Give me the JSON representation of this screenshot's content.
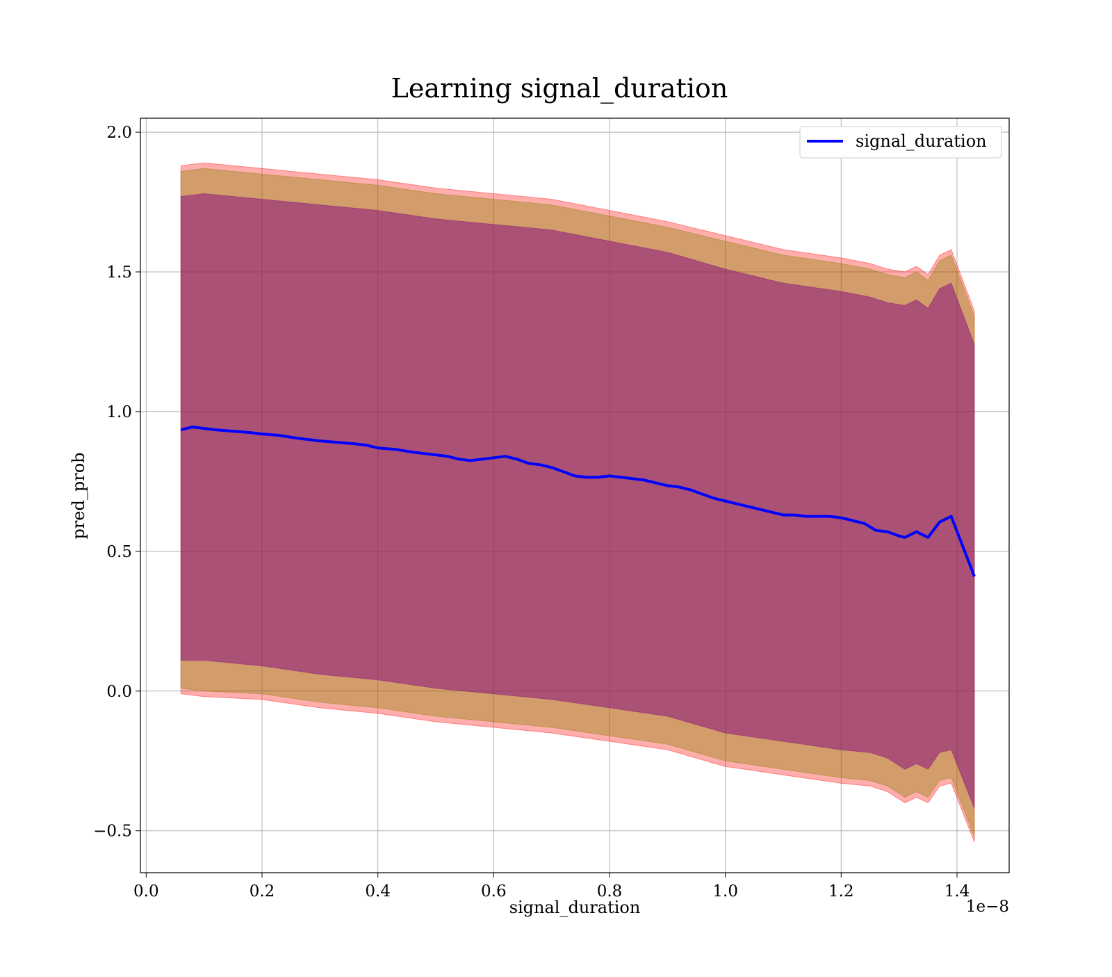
{
  "chart_data": {
    "type": "line",
    "title": "Learning signal_duration",
    "xlabel": "signal_duration",
    "ylabel": "pred_prob",
    "x_offset_label": "1e−8",
    "xlim": [
      -0.01,
      1.49
    ],
    "ylim": [
      -0.65,
      2.05
    ],
    "x_ticks": [
      0.0,
      0.2,
      0.4,
      0.6,
      0.8,
      1.0,
      1.2,
      1.4
    ],
    "x_tick_labels": [
      "0.0",
      "0.2",
      "0.4",
      "0.6",
      "0.8",
      "1.0",
      "1.2",
      "1.4"
    ],
    "y_ticks": [
      -0.5,
      0.0,
      0.5,
      1.0,
      1.5,
      2.0
    ],
    "y_tick_labels": [
      "−0.5",
      "0.0",
      "0.5",
      "1.0",
      "1.5",
      "2.0"
    ],
    "grid": true,
    "legend_position": "top-right",
    "colors": {
      "line": "#0000ff",
      "outer_band": "#ff0000",
      "middle_band": "#8b8000",
      "inner_band": "#800080"
    },
    "series": [
      {
        "name": "signal_duration",
        "x": [
          0.06,
          0.08,
          0.1,
          0.12,
          0.15,
          0.18,
          0.2,
          0.23,
          0.26,
          0.28,
          0.3,
          0.33,
          0.36,
          0.38,
          0.4,
          0.43,
          0.46,
          0.48,
          0.5,
          0.52,
          0.54,
          0.56,
          0.58,
          0.6,
          0.62,
          0.64,
          0.66,
          0.68,
          0.7,
          0.72,
          0.74,
          0.76,
          0.78,
          0.8,
          0.82,
          0.84,
          0.86,
          0.88,
          0.9,
          0.92,
          0.94,
          0.96,
          0.98,
          1.0,
          1.02,
          1.04,
          1.06,
          1.08,
          1.1,
          1.12,
          1.14,
          1.16,
          1.18,
          1.2,
          1.22,
          1.24,
          1.26,
          1.28,
          1.3,
          1.31,
          1.33,
          1.35,
          1.37,
          1.39,
          1.43
        ],
        "y": [
          0.935,
          0.945,
          0.94,
          0.935,
          0.93,
          0.925,
          0.92,
          0.915,
          0.905,
          0.9,
          0.895,
          0.89,
          0.885,
          0.88,
          0.87,
          0.865,
          0.855,
          0.85,
          0.845,
          0.84,
          0.83,
          0.825,
          0.83,
          0.835,
          0.84,
          0.83,
          0.815,
          0.81,
          0.8,
          0.785,
          0.77,
          0.765,
          0.765,
          0.77,
          0.765,
          0.76,
          0.755,
          0.745,
          0.735,
          0.73,
          0.72,
          0.705,
          0.69,
          0.68,
          0.67,
          0.66,
          0.65,
          0.64,
          0.63,
          0.63,
          0.625,
          0.625,
          0.625,
          0.62,
          0.61,
          0.6,
          0.575,
          0.57,
          0.555,
          0.55,
          0.57,
          0.55,
          0.605,
          0.625,
          0.41
        ]
      }
    ],
    "bands": [
      {
        "color": "#ff0000",
        "x": [
          0.06,
          0.1,
          0.2,
          0.3,
          0.4,
          0.5,
          0.6,
          0.7,
          0.8,
          0.9,
          1.0,
          1.1,
          1.2,
          1.25,
          1.28,
          1.31,
          1.33,
          1.35,
          1.37,
          1.39,
          1.43
        ],
        "upper": [
          1.88,
          1.89,
          1.87,
          1.85,
          1.83,
          1.8,
          1.78,
          1.76,
          1.72,
          1.68,
          1.63,
          1.58,
          1.55,
          1.53,
          1.51,
          1.5,
          1.52,
          1.49,
          1.56,
          1.58,
          1.36
        ],
        "lower": [
          -0.01,
          -0.02,
          -0.03,
          -0.06,
          -0.08,
          -0.11,
          -0.13,
          -0.15,
          -0.18,
          -0.21,
          -0.27,
          -0.3,
          -0.33,
          -0.34,
          -0.36,
          -0.4,
          -0.38,
          -0.4,
          -0.34,
          -0.33,
          -0.54
        ]
      },
      {
        "color": "#8b8000",
        "x": [
          0.06,
          0.1,
          0.2,
          0.3,
          0.4,
          0.5,
          0.6,
          0.7,
          0.8,
          0.9,
          1.0,
          1.1,
          1.2,
          1.25,
          1.28,
          1.31,
          1.33,
          1.35,
          1.37,
          1.39,
          1.43
        ],
        "upper": [
          1.86,
          1.87,
          1.85,
          1.83,
          1.81,
          1.78,
          1.76,
          1.74,
          1.7,
          1.66,
          1.61,
          1.56,
          1.53,
          1.51,
          1.49,
          1.48,
          1.5,
          1.47,
          1.54,
          1.56,
          1.34
        ],
        "lower": [
          0.01,
          0.0,
          -0.01,
          -0.04,
          -0.06,
          -0.09,
          -0.11,
          -0.13,
          -0.16,
          -0.19,
          -0.25,
          -0.28,
          -0.31,
          -0.32,
          -0.34,
          -0.38,
          -0.36,
          -0.38,
          -0.32,
          -0.31,
          -0.52
        ]
      },
      {
        "color": "#800080",
        "x": [
          0.06,
          0.1,
          0.2,
          0.3,
          0.4,
          0.5,
          0.6,
          0.7,
          0.8,
          0.9,
          1.0,
          1.1,
          1.2,
          1.25,
          1.28,
          1.31,
          1.33,
          1.35,
          1.37,
          1.39,
          1.43
        ],
        "upper": [
          1.77,
          1.78,
          1.76,
          1.74,
          1.72,
          1.69,
          1.67,
          1.65,
          1.61,
          1.57,
          1.51,
          1.46,
          1.43,
          1.41,
          1.39,
          1.38,
          1.4,
          1.37,
          1.44,
          1.46,
          1.24
        ],
        "lower": [
          0.11,
          0.11,
          0.09,
          0.06,
          0.04,
          0.01,
          -0.01,
          -0.03,
          -0.06,
          -0.09,
          -0.15,
          -0.18,
          -0.21,
          -0.22,
          -0.24,
          -0.28,
          -0.26,
          -0.28,
          -0.22,
          -0.21,
          -0.42
        ]
      }
    ]
  }
}
